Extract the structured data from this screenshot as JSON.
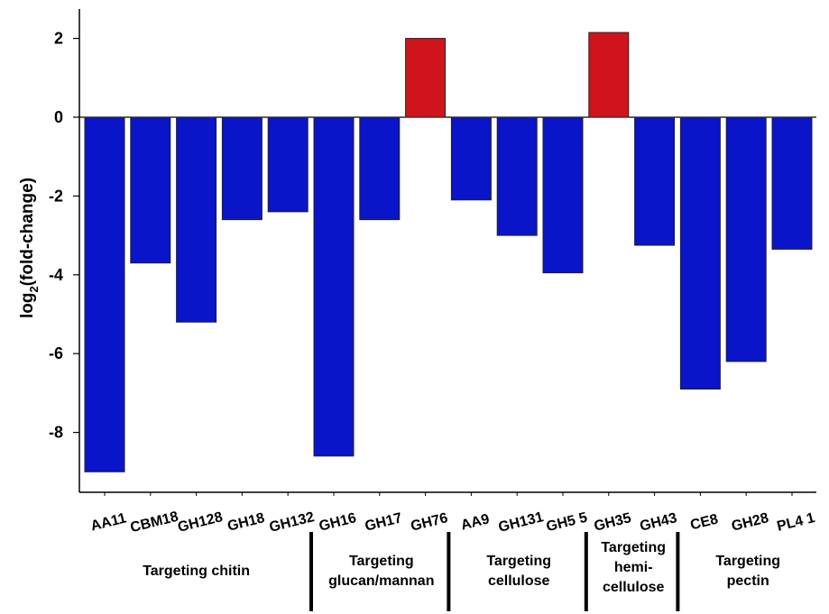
{
  "chart_data": {
    "type": "bar",
    "ylabel": "log2(fold-change)",
    "ylabel_main": "log",
    "ylabel_sub": "2",
    "ylabel_rest": "(fold-change)",
    "ylim": [
      -9.5,
      2.7
    ],
    "yticks": [
      2,
      0,
      -2,
      -4,
      -6,
      -8
    ],
    "categories": [
      "AA11",
      "CBM18",
      "GH128",
      "GH18",
      "GH132",
      "GH16",
      "GH17",
      "GH76",
      "AA9",
      "GH131",
      "GH5_5",
      "GH35",
      "GH43",
      "CE8",
      "GH28",
      "PL4_1"
    ],
    "category_labels": [
      "AA11",
      "CBM18",
      "GH128",
      "GH18",
      "GH132",
      "GH16",
      "GH17",
      "GH76",
      "AA9",
      "GH131",
      "GH5 5",
      "GH35",
      "GH43",
      "CE8",
      "GH28",
      "PL4 1"
    ],
    "values": [
      -9.0,
      -3.7,
      -5.2,
      -2.6,
      -2.4,
      -8.6,
      -2.6,
      2.0,
      -2.1,
      -3.0,
      -3.95,
      2.15,
      -3.25,
      -6.9,
      -6.2,
      -3.35
    ],
    "colors": {
      "negative": "#0a14c8",
      "positive": "#d0141c"
    },
    "groups": [
      {
        "label": [
          "Targeting chitin"
        ],
        "start": 0,
        "end": 4
      },
      {
        "label": [
          "Targeting",
          "glucan/mannan"
        ],
        "start": 5,
        "end": 7
      },
      {
        "label": [
          "Targeting",
          "cellulose"
        ],
        "start": 8,
        "end": 10
      },
      {
        "label": [
          "Targeting",
          "hemi-",
          "cellulose"
        ],
        "start": 11,
        "end": 12
      },
      {
        "label": [
          "Targeting",
          "pectin"
        ],
        "start": 13,
        "end": 15
      }
    ]
  }
}
